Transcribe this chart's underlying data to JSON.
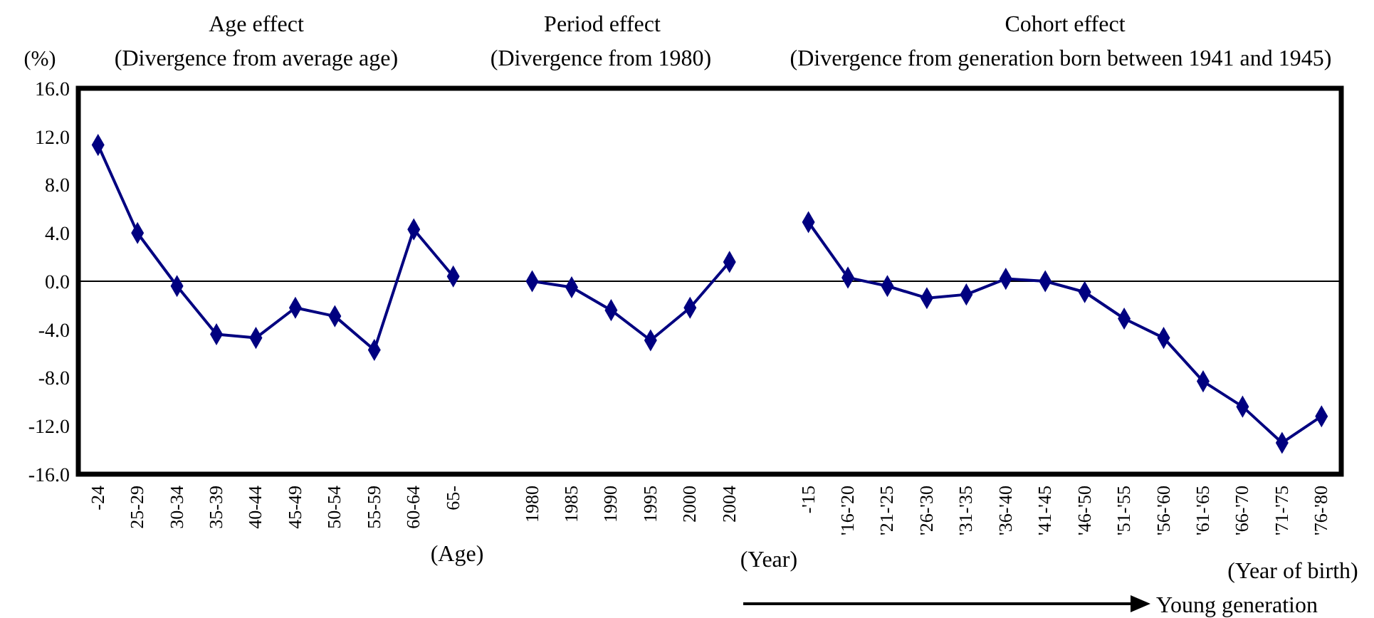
{
  "chart_data": {
    "type": "line",
    "ylabel": "(%)",
    "categories": [
      "-24",
      "25-29",
      "30-34",
      "35-39",
      "40-44",
      "45-49",
      "50-54",
      "55-59",
      "60-64",
      "65-",
      null,
      "1980",
      "1985",
      "1990",
      "1995",
      "2000",
      "2004",
      null,
      "-'15",
      "'16-'20",
      "'21-'25",
      "'26-'30",
      "'31-'35",
      "'36-'40",
      "'41-'45",
      "'46-'50",
      "'51-'55",
      "'56-'60",
      "'61-'65",
      "'66-'70",
      "'71-'75",
      "'76-'80"
    ],
    "series": [
      {
        "color": "#000080",
        "values": [
          11.3,
          4.0,
          -0.4,
          -4.4,
          -4.7,
          -2.2,
          -2.9,
          -5.7,
          4.3,
          0.4,
          null,
          null,
          null,
          null,
          null,
          null,
          null,
          null,
          null,
          null,
          null,
          null,
          null,
          null,
          null,
          null,
          null,
          null,
          null,
          null,
          null,
          null
        ]
      },
      {
        "color": "#000080",
        "values": [
          null,
          null,
          null,
          null,
          null,
          null,
          null,
          null,
          null,
          null,
          null,
          0.0,
          -0.5,
          -2.4,
          -4.9,
          -2.2,
          1.6,
          null,
          null,
          null,
          null,
          null,
          null,
          null,
          null,
          null,
          null,
          null,
          null,
          null,
          null,
          null
        ]
      },
      {
        "color": "#000080",
        "values": [
          null,
          null,
          null,
          null,
          null,
          null,
          null,
          null,
          null,
          null,
          null,
          null,
          null,
          null,
          null,
          null,
          null,
          null,
          4.9,
          0.3,
          -0.4,
          -1.4,
          -1.1,
          0.2,
          0.0,
          -0.9,
          -3.1,
          -4.7,
          -8.3,
          -10.4,
          -13.4,
          -11.2
        ]
      }
    ],
    "ylim": [
      -16,
      16
    ],
    "yticks": [
      {
        "value": -16,
        "label": "-16.0"
      },
      {
        "value": -12,
        "label": "-12.0"
      },
      {
        "value": -8,
        "label": "-8.0"
      },
      {
        "value": -4,
        "label": "-4.0"
      },
      {
        "value": 0,
        "label": "0.0"
      },
      {
        "value": 4,
        "label": "4.0"
      },
      {
        "value": 8,
        "label": "8.0"
      },
      {
        "value": 12,
        "label": "12.0"
      },
      {
        "value": 16,
        "label": "16.0"
      }
    ],
    "ref_lines": [
      {
        "axis": "y",
        "value": 0,
        "color": "#000000"
      }
    ],
    "marker": "diamond",
    "line_style": "solid",
    "grid": false,
    "annotations": [
      "Age effect",
      "(Divergence from average age)",
      "Period effect",
      "(Divergence from 1980)",
      "Cohort effect",
      "(Divergence from generation born between 1941 and 1945)",
      "(Age)",
      "(Year)",
      "(Year of birth)",
      "Young generation"
    ]
  }
}
